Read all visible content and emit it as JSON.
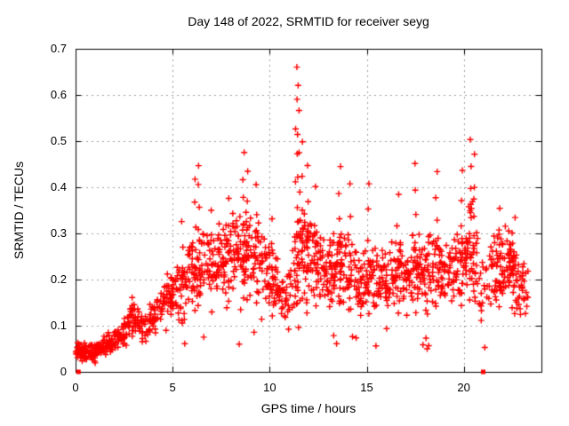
{
  "title": "Day 148 of 2022, SRMTID for receiver seyg",
  "x_axis": {
    "label": "GPS time / hours",
    "min": 0,
    "max": 24,
    "ticks": [
      0,
      5,
      10,
      15,
      20
    ],
    "tick_labels": [
      "0",
      "5",
      "10",
      "15",
      "20"
    ]
  },
  "y_axis": {
    "label": "SRMTID / TECUs",
    "min": 0,
    "max": 0.7,
    "ticks": [
      0,
      0.1,
      0.2,
      0.3,
      0.4,
      0.5,
      0.6,
      0.7
    ],
    "tick_labels": [
      "0",
      "0.1",
      "0.2",
      "0.3",
      "0.4",
      "0.5",
      "0.6",
      "0.7"
    ]
  },
  "chart_data": {
    "type": "scatter",
    "title": "Day 148 of 2022, SRMTID for receiver seyg",
    "xlabel": "GPS time / hours",
    "ylabel": "SRMTID / TECUs",
    "xlim": [
      0,
      24
    ],
    "ylim": [
      0,
      0.7
    ],
    "x_ticks": [
      0,
      5,
      10,
      15,
      20
    ],
    "y_ticks": [
      0,
      0.1,
      0.2,
      0.3,
      0.4,
      0.5,
      0.6,
      0.7
    ],
    "grid": true,
    "legend": "none",
    "marker": "plus",
    "marker_color": "#ff0000",
    "grid_color": "#a0a0a0",
    "border_color": "#000000",
    "background": "#ffffff",
    "seed": 42,
    "x_step": 0.1,
    "envelope_format": [
      "hour",
      "mean_TECU",
      "spread_TECU",
      "points_per_step"
    ],
    "envelope": [
      [
        0.0,
        0.048,
        0.012,
        9
      ],
      [
        0.5,
        0.04,
        0.014,
        9
      ],
      [
        1.0,
        0.042,
        0.016,
        8
      ],
      [
        1.5,
        0.055,
        0.018,
        7
      ],
      [
        2.0,
        0.065,
        0.02,
        6
      ],
      [
        2.5,
        0.085,
        0.022,
        6
      ],
      [
        2.9,
        0.12,
        0.022,
        6
      ],
      [
        3.2,
        0.115,
        0.025,
        6
      ],
      [
        3.5,
        0.09,
        0.025,
        6
      ],
      [
        4.0,
        0.12,
        0.028,
        6
      ],
      [
        4.5,
        0.15,
        0.03,
        6
      ],
      [
        5.0,
        0.175,
        0.035,
        6
      ],
      [
        5.5,
        0.19,
        0.042,
        6
      ],
      [
        6.0,
        0.22,
        0.052,
        7
      ],
      [
        6.5,
        0.235,
        0.055,
        6
      ],
      [
        7.0,
        0.225,
        0.05,
        6
      ],
      [
        7.5,
        0.24,
        0.055,
        7
      ],
      [
        8.0,
        0.255,
        0.058,
        7
      ],
      [
        8.5,
        0.265,
        0.06,
        7
      ],
      [
        9.0,
        0.255,
        0.058,
        6
      ],
      [
        9.5,
        0.245,
        0.055,
        6
      ],
      [
        10.0,
        0.215,
        0.052,
        6
      ],
      [
        10.5,
        0.175,
        0.048,
        6
      ],
      [
        11.0,
        0.165,
        0.048,
        6
      ],
      [
        11.5,
        0.265,
        0.075,
        7
      ],
      [
        12.0,
        0.255,
        0.068,
        7
      ],
      [
        12.5,
        0.235,
        0.06,
        6
      ],
      [
        13.0,
        0.205,
        0.055,
        6
      ],
      [
        13.6,
        0.24,
        0.06,
        7
      ],
      [
        14.1,
        0.22,
        0.058,
        6
      ],
      [
        14.6,
        0.19,
        0.052,
        6
      ],
      [
        15.1,
        0.215,
        0.055,
        6
      ],
      [
        15.6,
        0.198,
        0.052,
        6
      ],
      [
        16.1,
        0.188,
        0.05,
        6
      ],
      [
        16.6,
        0.215,
        0.055,
        6
      ],
      [
        17.1,
        0.2,
        0.052,
        6
      ],
      [
        17.6,
        0.228,
        0.058,
        6
      ],
      [
        18.1,
        0.212,
        0.055,
        6
      ],
      [
        18.6,
        0.238,
        0.06,
        7
      ],
      [
        19.1,
        0.215,
        0.055,
        6
      ],
      [
        19.6,
        0.222,
        0.055,
        6
      ],
      [
        20.1,
        0.258,
        0.065,
        7
      ],
      [
        20.5,
        0.275,
        0.078,
        7
      ],
      [
        20.9,
        0.175,
        0.048,
        3
      ],
      [
        21.3,
        0.185,
        0.048,
        3
      ],
      [
        21.7,
        0.245,
        0.06,
        9
      ],
      [
        22.2,
        0.238,
        0.058,
        9
      ],
      [
        22.7,
        0.205,
        0.052,
        8
      ],
      [
        23.0,
        0.185,
        0.045,
        7
      ],
      [
        23.3,
        0.158,
        0.04,
        5
      ]
    ],
    "spikes_format": [
      "hour",
      "peak_TECU",
      "n_points"
    ],
    "spikes": [
      [
        2.95,
        0.16,
        4
      ],
      [
        5.5,
        0.33,
        5
      ],
      [
        6.15,
        0.42,
        7
      ],
      [
        6.35,
        0.45,
        8
      ],
      [
        7.0,
        0.35,
        5
      ],
      [
        7.9,
        0.38,
        5
      ],
      [
        8.65,
        0.47,
        8
      ],
      [
        8.85,
        0.43,
        6
      ],
      [
        9.35,
        0.4,
        6
      ],
      [
        10.15,
        0.33,
        4
      ],
      [
        11.38,
        0.655,
        10
      ],
      [
        11.45,
        0.62,
        6
      ],
      [
        11.55,
        0.57,
        6
      ],
      [
        11.7,
        0.5,
        6
      ],
      [
        11.95,
        0.45,
        5
      ],
      [
        12.4,
        0.4,
        4
      ],
      [
        13.6,
        0.44,
        7
      ],
      [
        14.15,
        0.41,
        5
      ],
      [
        15.1,
        0.41,
        6
      ],
      [
        16.6,
        0.38,
        5
      ],
      [
        17.5,
        0.45,
        7
      ],
      [
        18.6,
        0.43,
        7
      ],
      [
        19.9,
        0.44,
        6
      ],
      [
        20.35,
        0.5,
        8
      ],
      [
        20.55,
        0.47,
        6
      ],
      [
        21.85,
        0.36,
        5
      ],
      [
        22.6,
        0.33,
        4
      ]
    ],
    "zero_square_markers_hours": [
      0.15,
      21.0
    ]
  }
}
